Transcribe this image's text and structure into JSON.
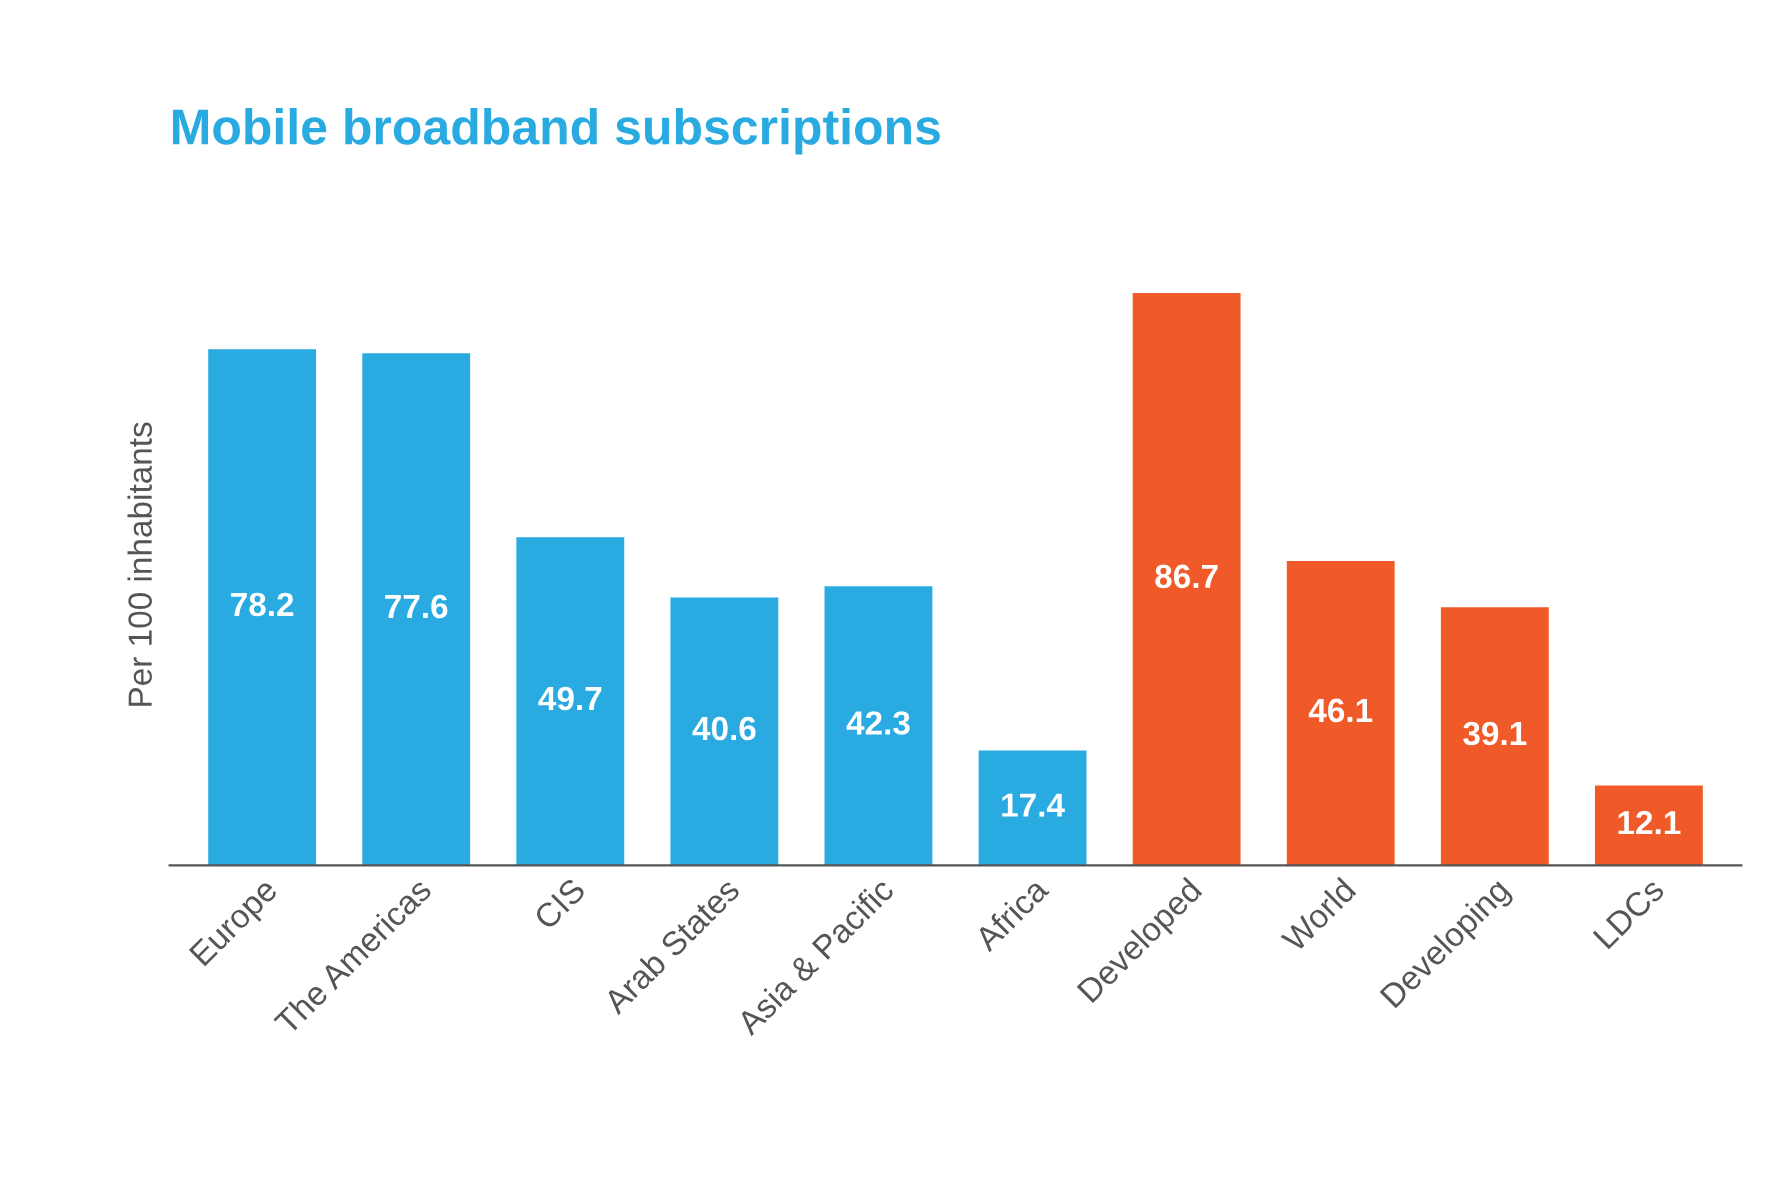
{
  "chart_data": {
    "type": "bar",
    "title": "Mobile broadband subscriptions",
    "ylabel": "Per 100 inhabitants",
    "categories": [
      "Europe",
      "The Americas",
      "CIS",
      "Arab States",
      "Asia & Pacific",
      "Africa",
      "Developed",
      "World",
      "Developing",
      "LDCs"
    ],
    "values": [
      78.2,
      77.6,
      49.7,
      40.6,
      42.3,
      17.4,
      86.7,
      46.1,
      39.1,
      12.1
    ],
    "colors": [
      "#29abe2",
      "#29abe2",
      "#29abe2",
      "#29abe2",
      "#29abe2",
      "#29abe2",
      "#f05a28",
      "#f05a28",
      "#f05a28",
      "#f05a28"
    ],
    "data_labels": true,
    "grid": false,
    "legend": false
  }
}
